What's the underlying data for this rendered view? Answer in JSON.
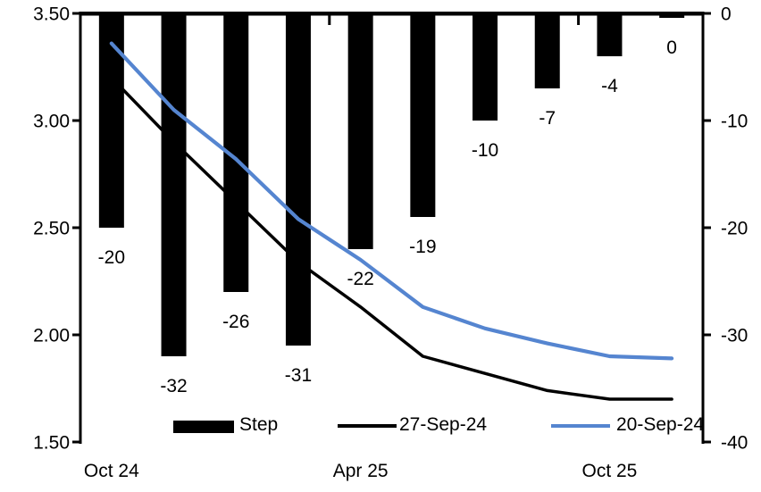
{
  "chart_data": {
    "type": "combo_bar_line",
    "title": "",
    "n_categories": 10,
    "grid": false,
    "x_axis": {
      "tick_labels": [
        {
          "slot": 0,
          "label": "Oct 24"
        },
        {
          "slot": 4,
          "label": "Apr 25"
        },
        {
          "slot": 8,
          "label": "Oct 25"
        }
      ],
      "boundary_tick_slots": [
        4,
        8
      ],
      "axis_position": "top"
    },
    "left_axis": {
      "min": 1.5,
      "max": 3.5,
      "tick_labels": [
        "3.50",
        "3.00",
        "2.50",
        "2.00",
        "1.50"
      ]
    },
    "right_axis": {
      "min": -40,
      "max": 0,
      "tick_labels": [
        "0",
        "-10",
        "-20",
        "-30",
        "-40"
      ]
    },
    "bar_series": {
      "name": "Step",
      "axis": "right",
      "color": "#000000",
      "values": [
        -20,
        -32,
        -26,
        -31,
        -22,
        -19,
        -10,
        -7,
        -4,
        0
      ],
      "data_labels": [
        "-20",
        "-32",
        "-26",
        "-31",
        "-22",
        "-19",
        "-10",
        "-7",
        "-4",
        "0"
      ]
    },
    "line_series": [
      {
        "name": "27-Sep-24",
        "axis": "left",
        "color": "#000000",
        "stroke_width": 3.5,
        "values": [
          3.2,
          2.9,
          2.62,
          2.34,
          2.13,
          1.9,
          1.82,
          1.74,
          1.7,
          1.7
        ]
      },
      {
        "name": "20-Sep-24",
        "axis": "left",
        "color": "#5585D0",
        "stroke_width": 4.2,
        "values": [
          3.36,
          3.05,
          2.82,
          2.54,
          2.35,
          2.13,
          2.03,
          1.96,
          1.9,
          1.89
        ]
      }
    ],
    "legend": {
      "position": "bottom",
      "entries": [
        {
          "type": "bar-swatch",
          "label": "Step",
          "color": "#000000"
        },
        {
          "type": "line-swatch",
          "label": "27-Sep-24",
          "color": "#000000"
        },
        {
          "type": "line-swatch",
          "label": "20-Sep-24",
          "color": "#5585D0"
        }
      ]
    }
  }
}
